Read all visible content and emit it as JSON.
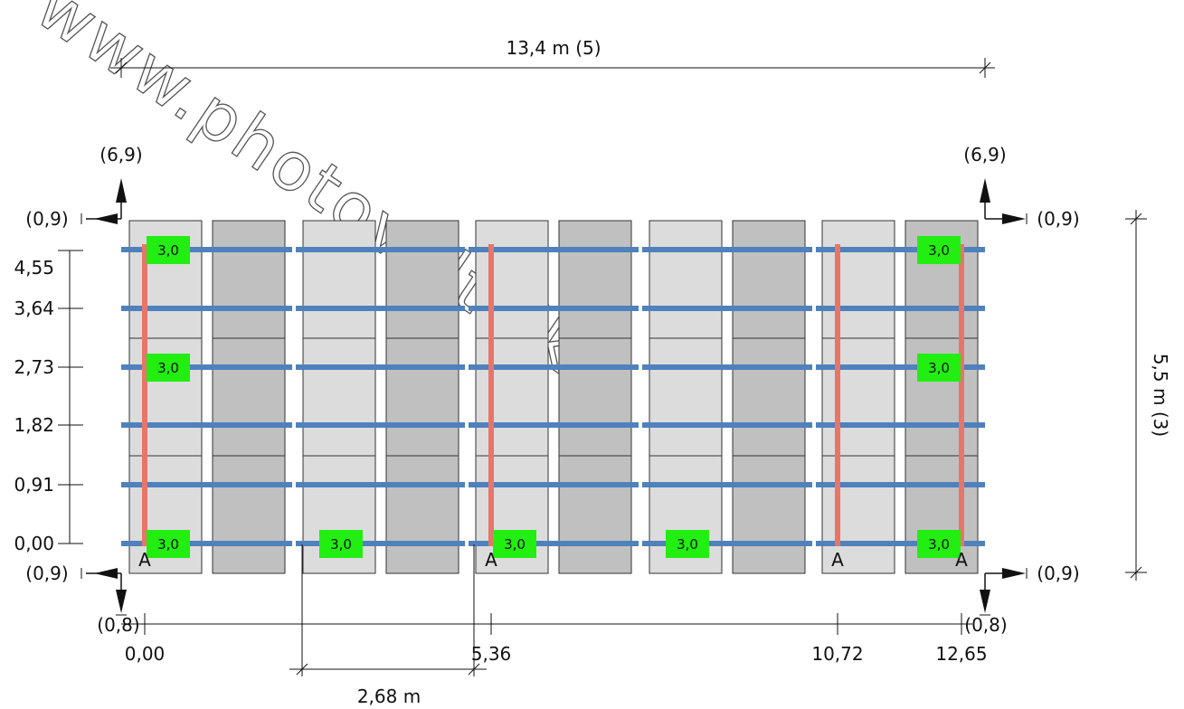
{
  "watermark": "www.photovoltaik",
  "width_dim": "13,4 m (5)",
  "height_dim": "5,5 m (3)",
  "spacing_dim": "2,68 m",
  "corner_labels": {
    "top_left_vertical": "(6,9)",
    "top_left_horizontal": "(0,9)",
    "top_right_vertical": "(6,9)",
    "top_right_horizontal": "(0,9)",
    "bottom_left_horizontal": "(0,9)",
    "bottom_left_vertical": "(0,8)",
    "bottom_right_horizontal": "(0,9)",
    "bottom_right_vertical": "(0,8)"
  },
  "rail_levels": [
    "4,55",
    "3,64",
    "2,73",
    "1,82",
    "0,91",
    "0,00"
  ],
  "x_positions": [
    "0,00",
    "5,36",
    "10,72",
    "12,65"
  ],
  "load_tag": "3,0",
  "anchor_label": "A",
  "colors": {
    "module_light": "#dcdcdc",
    "module_dark": "#c0c0c0",
    "rail": "#4f81bd",
    "hook": "#e87569",
    "load_tag": "#22ee11"
  }
}
